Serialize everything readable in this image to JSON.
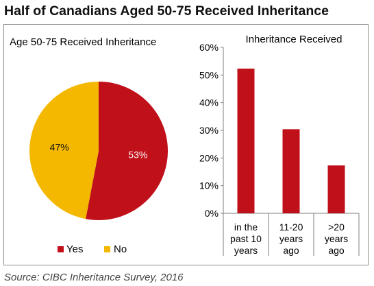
{
  "title": "Half of Canadians Aged 50-75 Received Inheritance",
  "source": "Source: CIBC Inheritance Survey, 2016",
  "colors": {
    "red": "#c0101a",
    "yellow": "#f5b800",
    "axis": "#7f7f7f"
  },
  "chart_data": [
    {
      "type": "pie",
      "title": "Age 50-75 Received Inheritance",
      "labels": [
        "Yes",
        "No"
      ],
      "values": [
        53,
        47
      ],
      "value_labels": [
        "53%",
        "47%"
      ],
      "colors": [
        "#c0101a",
        "#f5b800"
      ],
      "legend": "bottom"
    },
    {
      "type": "bar",
      "title": "Inheritance Received",
      "categories": [
        [
          "in the",
          "past 10",
          "years"
        ],
        [
          "11-20",
          "years",
          "ago"
        ],
        [
          ">20",
          "years",
          "ago"
        ]
      ],
      "values": [
        52.3,
        30.4,
        17.3
      ],
      "color": "#c0101a",
      "ylim": [
        0,
        60
      ],
      "yticks": [
        "0%",
        "10%",
        "20%",
        "30%",
        "40%",
        "50%",
        "60%"
      ],
      "grid": false,
      "xlabel": "",
      "ylabel": ""
    }
  ]
}
